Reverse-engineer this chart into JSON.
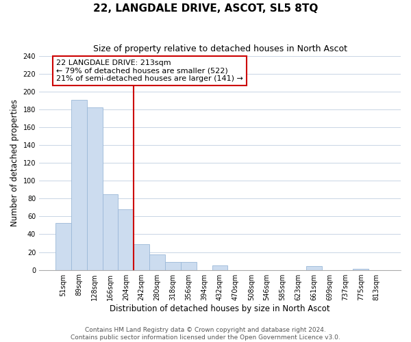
{
  "title": "22, LANGDALE DRIVE, ASCOT, SL5 8TQ",
  "subtitle": "Size of property relative to detached houses in North Ascot",
  "xlabel": "Distribution of detached houses by size in North Ascot",
  "ylabel": "Number of detached properties",
  "bar_labels": [
    "51sqm",
    "89sqm",
    "128sqm",
    "166sqm",
    "204sqm",
    "242sqm",
    "280sqm",
    "318sqm",
    "356sqm",
    "394sqm",
    "432sqm",
    "470sqm",
    "508sqm",
    "546sqm",
    "585sqm",
    "623sqm",
    "661sqm",
    "699sqm",
    "737sqm",
    "775sqm",
    "813sqm"
  ],
  "bar_values": [
    53,
    191,
    182,
    85,
    68,
    29,
    17,
    9,
    9,
    0,
    5,
    0,
    0,
    0,
    0,
    0,
    4,
    0,
    0,
    1,
    0
  ],
  "bar_color": "#ccdcef",
  "bar_edge_color": "#9ab8d8",
  "vline_x": 4.5,
  "vline_color": "#cc0000",
  "annotation_title": "22 LANGDALE DRIVE: 213sqm",
  "annotation_line1": "← 79% of detached houses are smaller (522)",
  "annotation_line2": "21% of semi-detached houses are larger (141) →",
  "annotation_box_color": "#ffffff",
  "annotation_box_edge_color": "#cc0000",
  "ylim": [
    0,
    240
  ],
  "yticks": [
    0,
    20,
    40,
    60,
    80,
    100,
    120,
    140,
    160,
    180,
    200,
    220,
    240
  ],
  "footer_line1": "Contains HM Land Registry data © Crown copyright and database right 2024.",
  "footer_line2": "Contains public sector information licensed under the Open Government Licence v3.0.",
  "bg_color": "#ffffff",
  "grid_color": "#c8d4e4",
  "title_fontsize": 11,
  "subtitle_fontsize": 9,
  "ylabel_fontsize": 8.5,
  "xlabel_fontsize": 8.5,
  "tick_fontsize": 7,
  "annotation_fontsize": 8,
  "footer_fontsize": 6.5
}
